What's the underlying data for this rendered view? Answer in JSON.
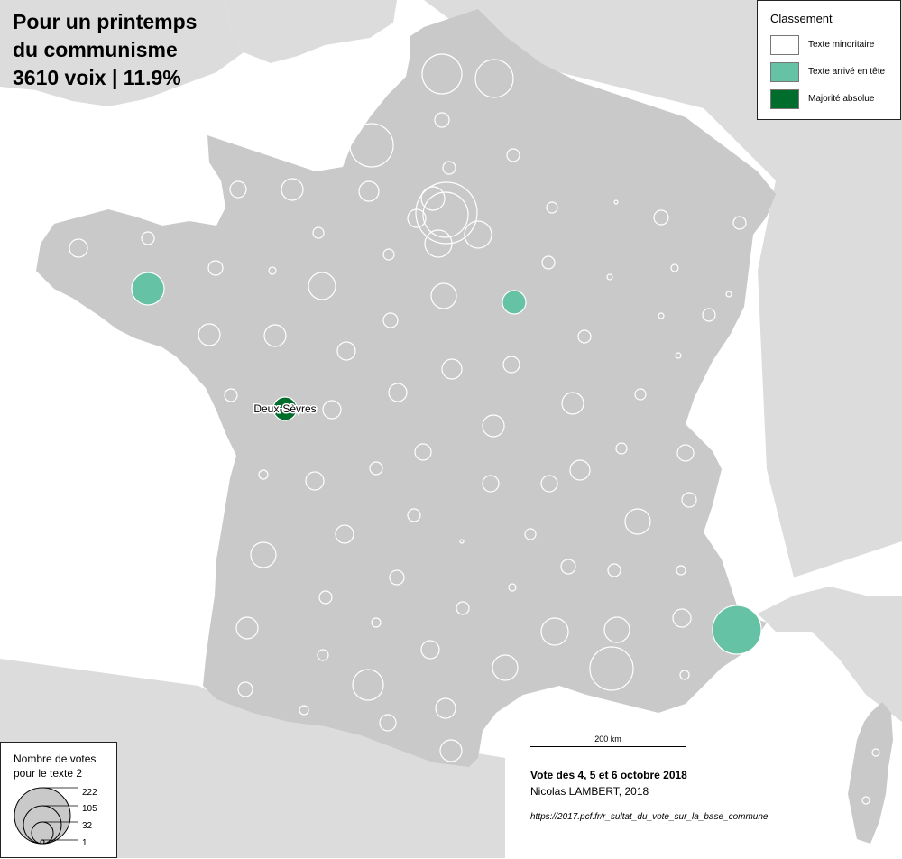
{
  "title": {
    "line1": "Pour un printemps",
    "line2": "du communisme",
    "line3": "3610 voix | 11.9%"
  },
  "legend_classement": {
    "title": "Classement",
    "items": [
      {
        "label": "Texte minoritaire",
        "color": "#ffffff"
      },
      {
        "label": "Texte arrivé en tête",
        "color": "#66c2a4"
      },
      {
        "label": "Majorité absolue",
        "color": "#006d2c"
      }
    ]
  },
  "legend_size": {
    "title_line1": "Nombre de votes",
    "title_line2": "pour le texte 2",
    "values": [
      "222",
      "105",
      "32",
      "1"
    ]
  },
  "scale": {
    "label": "200 km"
  },
  "sources": {
    "line1": "Vote des 4, 5 et 6 octobre 2018",
    "line2": "Nicolas LAMBERT, 2018",
    "line3": "https://2017.pcf.fr/r_sultat_du_vote_sur_la_base_commune"
  },
  "highlight_label": "Deux-Sèvres",
  "colors": {
    "background": "#ffffff",
    "neighbors": "#dcdcdc",
    "france": "#c9c9c9",
    "minority_stroke": "#ffffff",
    "leader": "#66c2a4",
    "absolute": "#006d2c"
  }
}
